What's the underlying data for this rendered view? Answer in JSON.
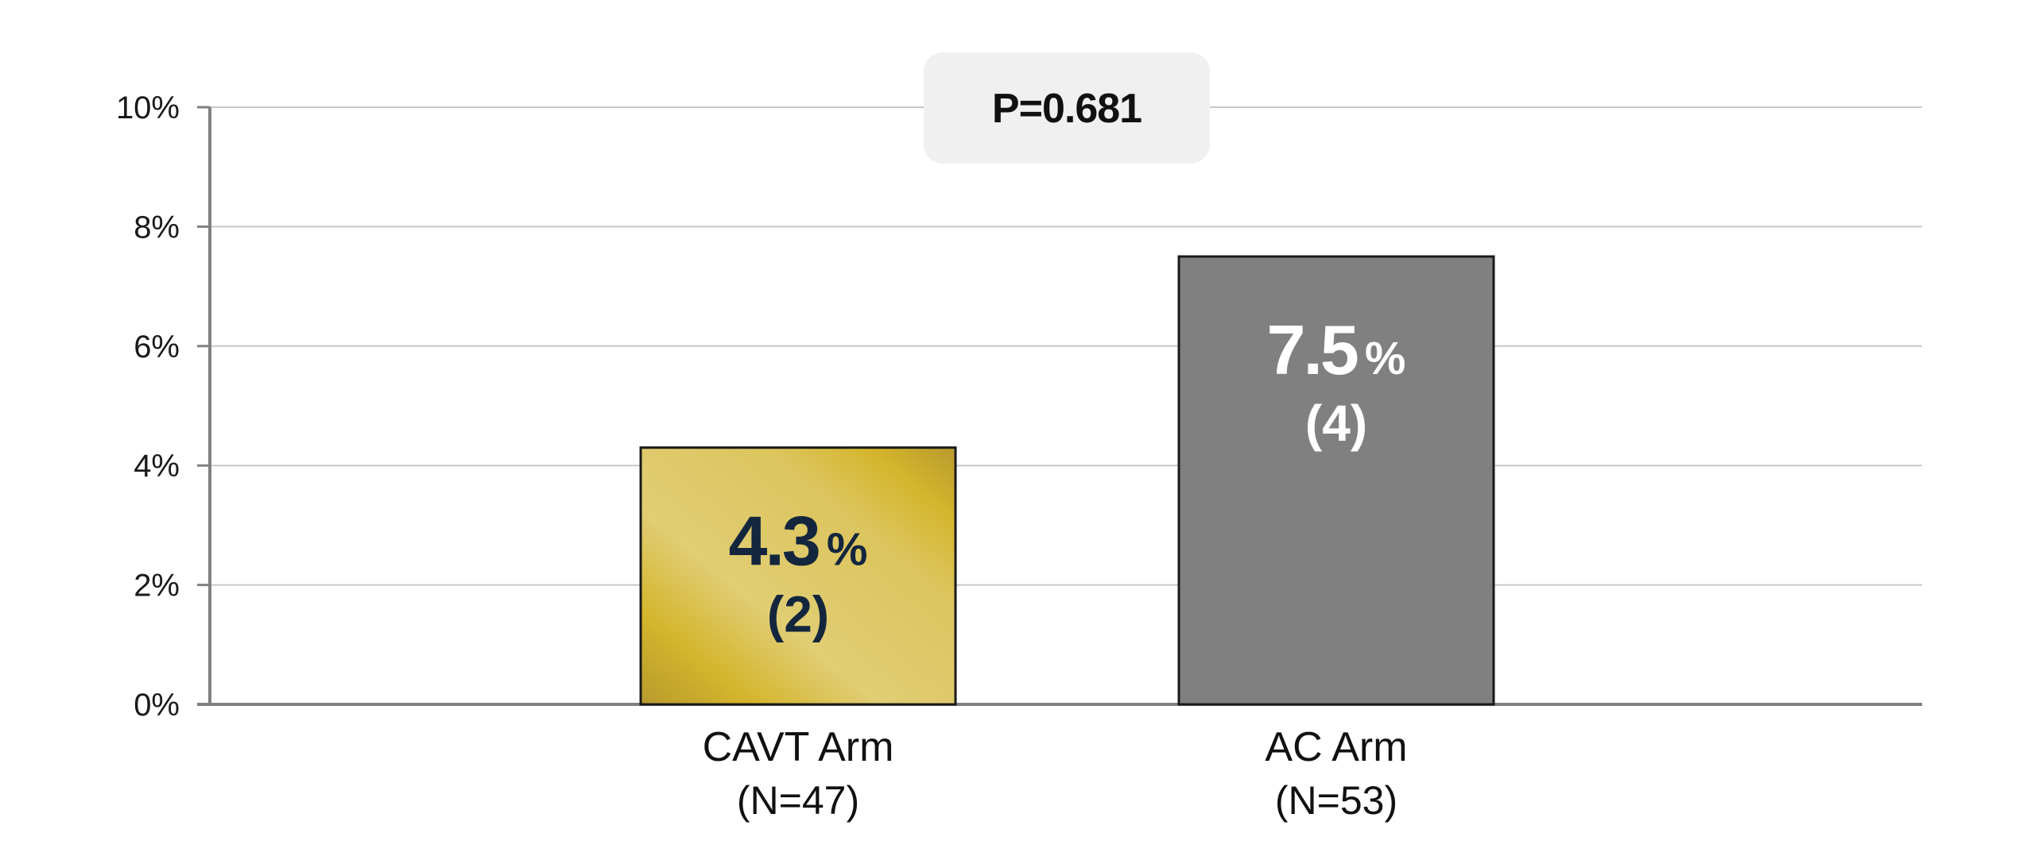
{
  "chart_data": {
    "type": "bar",
    "categories": [
      "CAVT Arm",
      "AC Arm"
    ],
    "category_sublabels": [
      "(N=47)",
      "(N=53)"
    ],
    "values": [
      4.3,
      7.5
    ],
    "value_labels": [
      "4.3",
      "7.5"
    ],
    "value_unit": "%",
    "counts": [
      "(2)",
      "(4)"
    ],
    "yticks": [
      "0%",
      "2%",
      "4%",
      "6%",
      "8%",
      "10%"
    ],
    "ylim": [
      0,
      10
    ],
    "grid": true,
    "annotation": "P=0.681",
    "title": "",
    "xlabel": "",
    "ylabel": ""
  },
  "colors": {
    "bar_gold_light": "#e0cd74",
    "bar_gold_mid": "#d4b52c",
    "bar_gold_dark": "#b89a2e",
    "bar_gray": "#808080",
    "label_on_gold": "#14263d",
    "label_on_gray": "#ffffff",
    "gridline": "#c8c8c8",
    "axis": "#808080",
    "annotation_bg": "#f0f0f0"
  }
}
